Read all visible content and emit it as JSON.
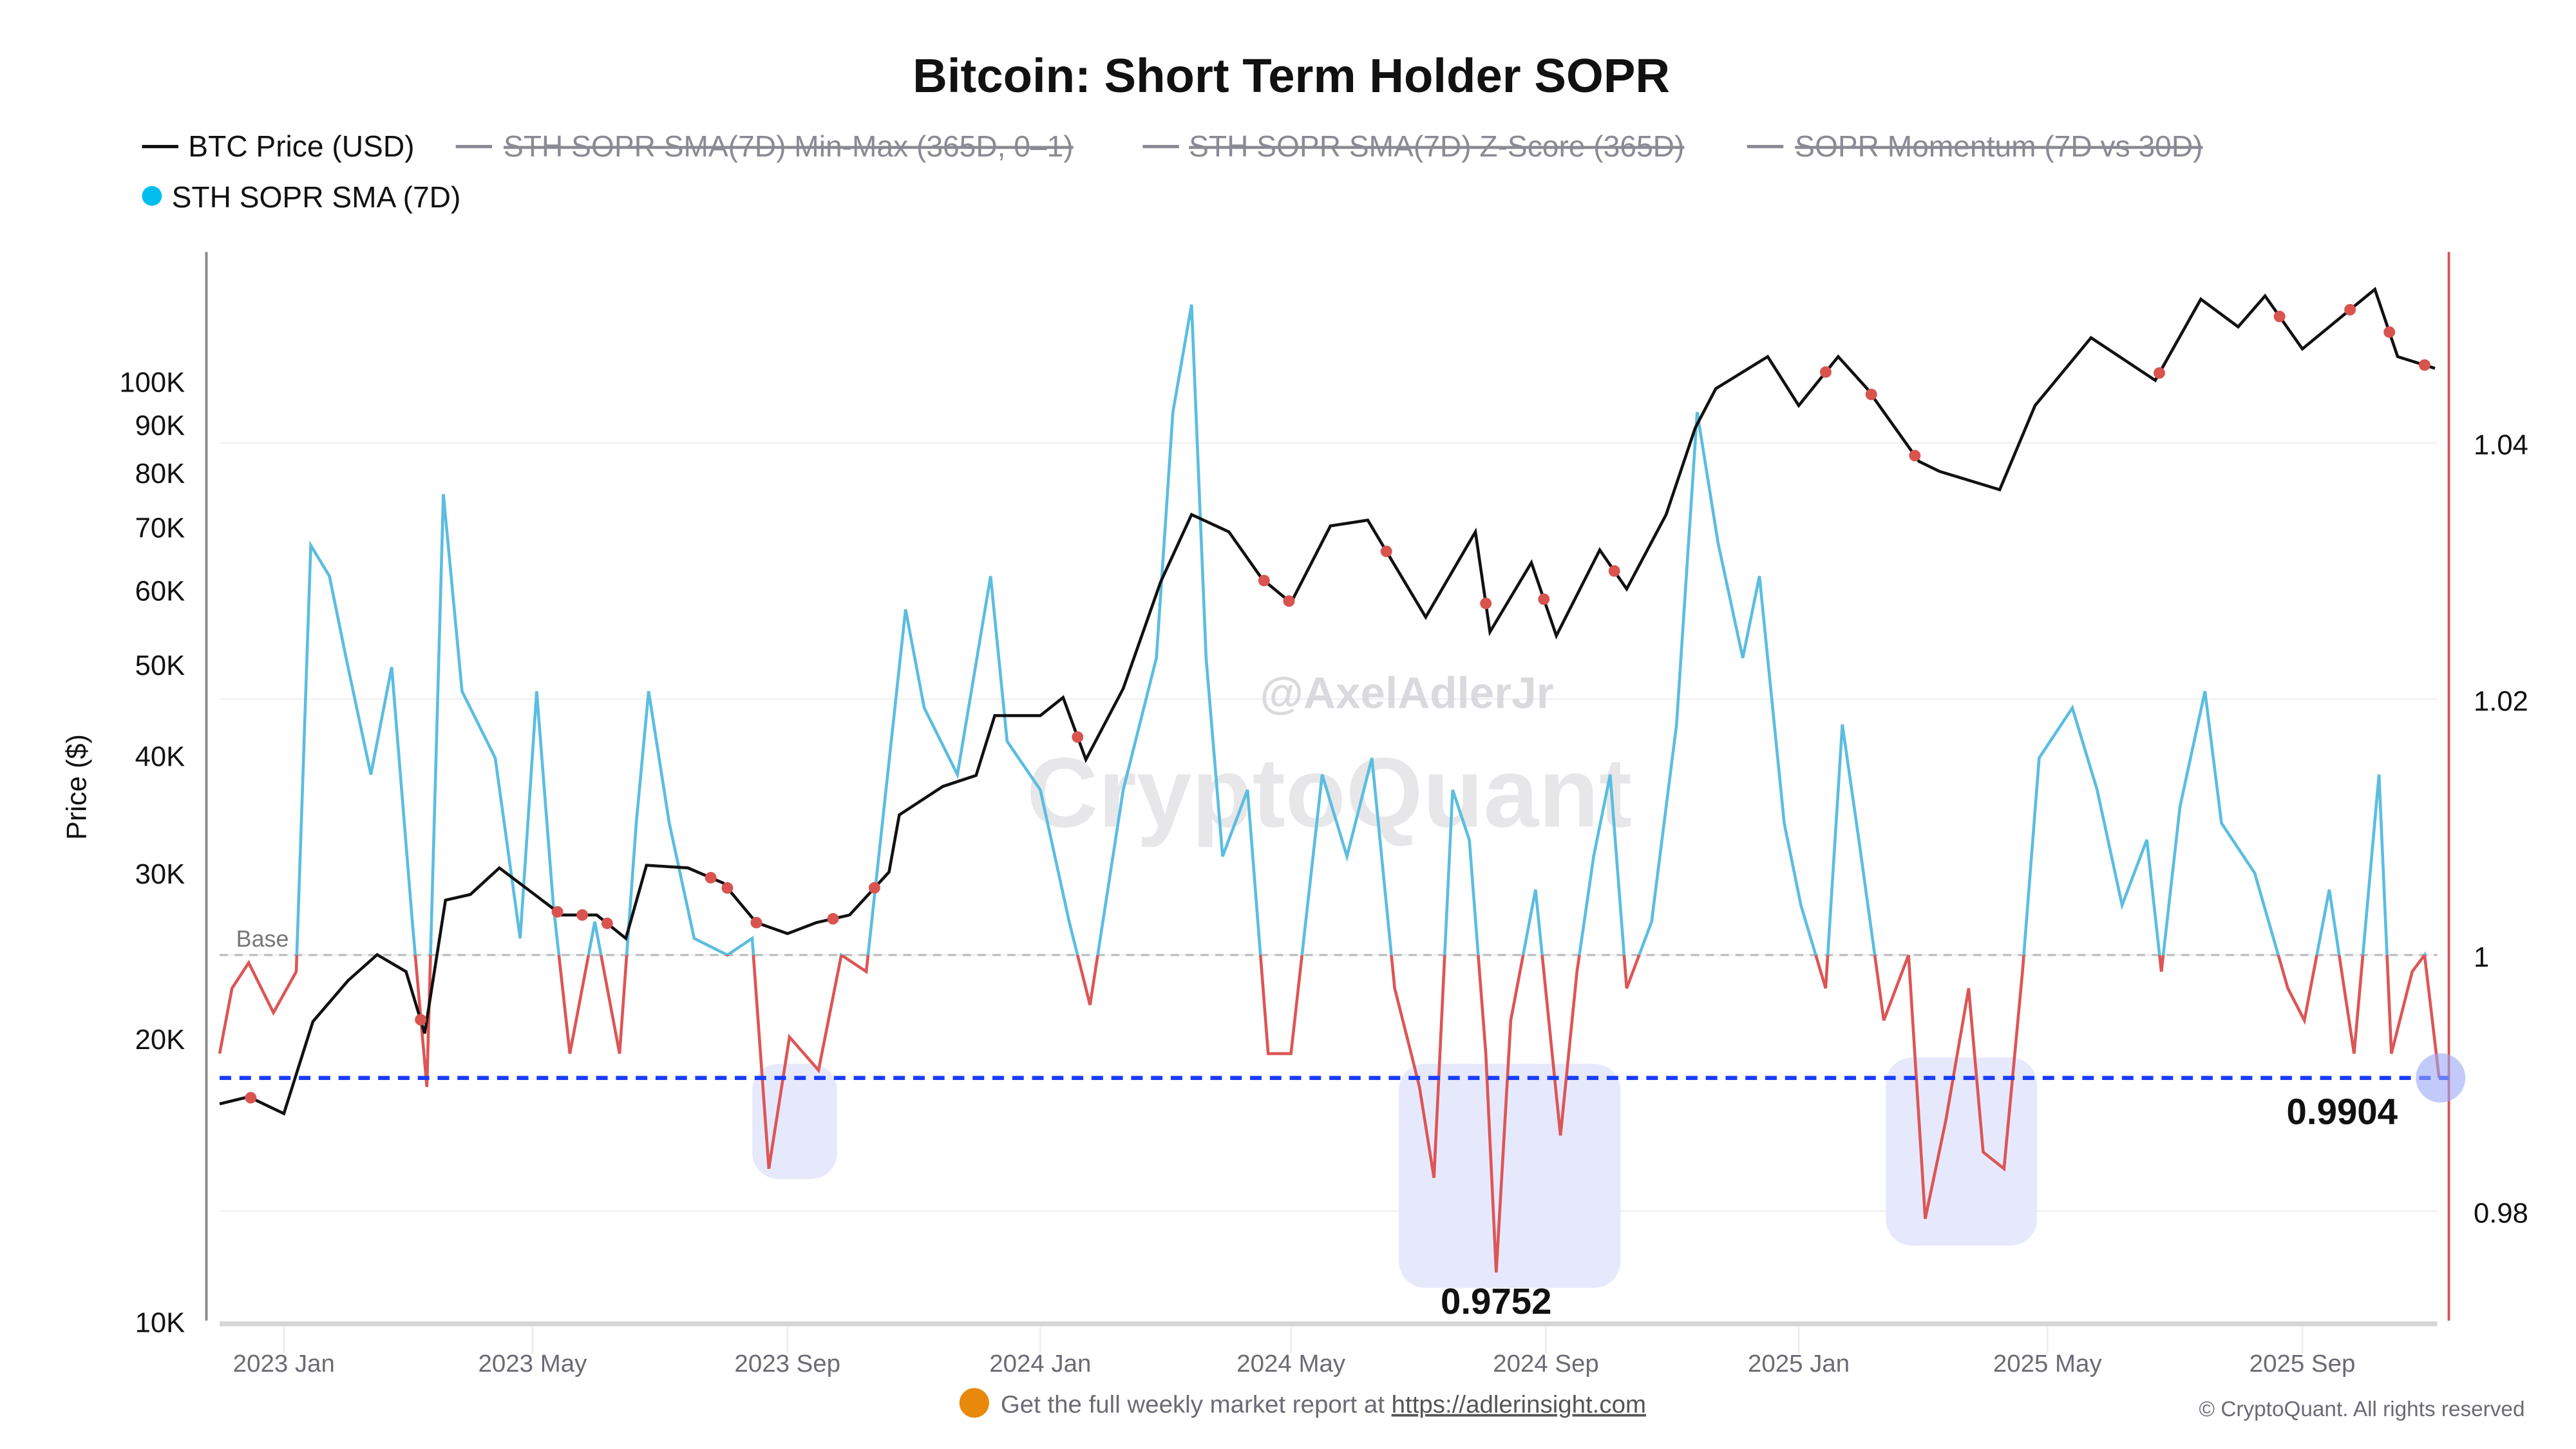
{
  "chart_data": {
    "type": "line",
    "title": "Bitcoin: Short Term Holder SOPR",
    "legend": [
      {
        "label": "BTC Price (USD)",
        "color": "#111111",
        "visible": true,
        "marker": "line"
      },
      {
        "label": "STH SOPR SMA(7D) Min-Max (365D, 0–1)",
        "color": "#8a8a94",
        "visible": false,
        "marker": "line"
      },
      {
        "label": "STH SOPR SMA(7D) Z-Score (365D)",
        "color": "#8a8a94",
        "visible": false,
        "marker": "line"
      },
      {
        "label": "SOPR Momentum (7D vs 30D)",
        "color": "#8a8a94",
        "visible": false,
        "marker": "line"
      },
      {
        "label": "STH SOPR SMA (7D)",
        "color": "#00bfef",
        "visible": true,
        "marker": "dot"
      }
    ],
    "legend_placement": "top-left",
    "ylabel_left": "Price ($)",
    "y_left_scale": "log",
    "y_left_range": [
      10000,
      150000
    ],
    "y_left_ticks": [
      "10K",
      "20K",
      "30K",
      "40K",
      "50K",
      "60K",
      "70K",
      "80K",
      "90K",
      "100K"
    ],
    "y_left_tick_values": [
      10000,
      20000,
      30000,
      40000,
      50000,
      60000,
      70000,
      80000,
      90000,
      100000
    ],
    "y_right_range": [
      0.9705,
      1.056
    ],
    "y_right_ticks": [
      "0.98",
      "1",
      "1.02",
      "1.04"
    ],
    "y_right_tick_values": [
      0.98,
      1,
      1.02,
      1.04
    ],
    "x_ticks": [
      "2023 Jan",
      "2023 May",
      "2023 Sep",
      "2024 Jan",
      "2024 May",
      "2024 Sep",
      "2025 Jan",
      "2025 May",
      "2025 Sep"
    ],
    "x_tick_dates": [
      "2023-01-01",
      "2023-05-01",
      "2023-09-01",
      "2024-01-01",
      "2024-05-01",
      "2024-09-01",
      "2025-01-01",
      "2025-05-01",
      "2025-09-01"
    ],
    "x_range": [
      "2022-12-01",
      "2025-11-06"
    ],
    "grid": true,
    "colors": {
      "price": "#111111",
      "sopr_above": "#5bbde0",
      "sopr_below": "#dd5555",
      "threshold": "#1a3cff",
      "base": "#bbbbbb",
      "marker": "#d9534f",
      "highlight": "#e6e9fc"
    },
    "base_line": {
      "label": "Base",
      "value": 1
    },
    "threshold_line": {
      "value": 0.9904
    },
    "annotations": [
      {
        "label": "0.9904",
        "date": "2025-11-06",
        "value": 0.9904
      },
      {
        "label": "0.9752",
        "date": "2024-08-08",
        "value": 0.9752
      }
    ],
    "highlight_zones": [
      {
        "from": "2023-08-15",
        "to": "2023-09-25",
        "low": 0.9825,
        "high": 0.9915
      },
      {
        "from": "2024-06-22",
        "to": "2024-10-07",
        "low": 0.974,
        "high": 0.9915
      },
      {
        "from": "2025-02-12",
        "to": "2025-04-26",
        "low": 0.9773,
        "high": 0.992
      }
    ],
    "series": [
      {
        "name": "BTC Price (USD)",
        "axis": "left",
        "points": [
          [
            "2022-12-01",
            17000
          ],
          [
            "2022-12-15",
            17300
          ],
          [
            "2023-01-01",
            16600
          ],
          [
            "2023-01-15",
            20800
          ],
          [
            "2023-02-01",
            23000
          ],
          [
            "2023-02-15",
            24500
          ],
          [
            "2023-03-01",
            23500
          ],
          [
            "2023-03-10",
            20200
          ],
          [
            "2023-03-20",
            28000
          ],
          [
            "2023-04-01",
            28400
          ],
          [
            "2023-04-15",
            30300
          ],
          [
            "2023-05-01",
            28500
          ],
          [
            "2023-05-15",
            27000
          ],
          [
            "2023-06-01",
            27000
          ],
          [
            "2023-06-15",
            25500
          ],
          [
            "2023-06-25",
            30500
          ],
          [
            "2023-07-15",
            30300
          ],
          [
            "2023-08-01",
            29200
          ],
          [
            "2023-08-17",
            26500
          ],
          [
            "2023-09-01",
            25800
          ],
          [
            "2023-09-15",
            26500
          ],
          [
            "2023-10-01",
            27000
          ],
          [
            "2023-10-20",
            30000
          ],
          [
            "2023-10-25",
            34500
          ],
          [
            "2023-11-15",
            37000
          ],
          [
            "2023-12-01",
            38000
          ],
          [
            "2023-12-10",
            44000
          ],
          [
            "2024-01-01",
            44000
          ],
          [
            "2024-01-12",
            46000
          ],
          [
            "2024-01-23",
            39500
          ],
          [
            "2024-02-10",
            47000
          ],
          [
            "2024-02-28",
            61000
          ],
          [
            "2024-03-14",
            72000
          ],
          [
            "2024-04-01",
            69000
          ],
          [
            "2024-04-17",
            61500
          ],
          [
            "2024-05-01",
            58000
          ],
          [
            "2024-05-20",
            70000
          ],
          [
            "2024-06-07",
            71000
          ],
          [
            "2024-07-05",
            56000
          ],
          [
            "2024-07-29",
            69000
          ],
          [
            "2024-08-05",
            54000
          ],
          [
            "2024-08-25",
            64000
          ],
          [
            "2024-09-06",
            53500
          ],
          [
            "2024-09-27",
            66000
          ],
          [
            "2024-10-10",
            60000
          ],
          [
            "2024-10-29",
            72000
          ],
          [
            "2024-11-12",
            89000
          ],
          [
            "2024-11-22",
            98000
          ],
          [
            "2024-12-17",
            106000
          ],
          [
            "2025-01-01",
            94000
          ],
          [
            "2025-01-20",
            106000
          ],
          [
            "2025-02-03",
            98000
          ],
          [
            "2025-02-28",
            82000
          ],
          [
            "2025-03-10",
            80000
          ],
          [
            "2025-04-08",
            76500
          ],
          [
            "2025-04-25",
            94000
          ],
          [
            "2025-05-22",
            111000
          ],
          [
            "2025-06-22",
            100000
          ],
          [
            "2025-07-14",
            122000
          ],
          [
            "2025-08-01",
            114000
          ],
          [
            "2025-08-14",
            123000
          ],
          [
            "2025-09-01",
            108000
          ],
          [
            "2025-10-06",
            125000
          ],
          [
            "2025-10-17",
            106000
          ],
          [
            "2025-11-04",
            103000
          ]
        ]
      },
      {
        "name": "STH SOPR SMA (7D)",
        "axis": "right",
        "points": [
          [
            "2022-12-01",
            0.9923
          ],
          [
            "2022-12-07",
            0.9974
          ],
          [
            "2022-12-15",
            0.9994
          ],
          [
            "2022-12-27",
            0.9955
          ],
          [
            "2023-01-07",
            0.9987
          ],
          [
            "2023-01-14",
            1.032
          ],
          [
            "2023-01-23",
            1.0296
          ],
          [
            "2023-01-31",
            1.0232
          ],
          [
            "2023-02-12",
            1.0141
          ],
          [
            "2023-02-22",
            1.0225
          ],
          [
            "2023-03-04",
            1.0026
          ],
          [
            "2023-03-11",
            0.9897
          ],
          [
            "2023-03-19",
            1.036
          ],
          [
            "2023-03-28",
            1.0206
          ],
          [
            "2023-04-13",
            1.0154
          ],
          [
            "2023-04-25",
            1.0013
          ],
          [
            "2023-05-03",
            1.0206
          ],
          [
            "2023-05-11",
            1.0039
          ],
          [
            "2023-05-19",
            0.9923
          ],
          [
            "2023-05-31",
            1.0026
          ],
          [
            "2023-06-12",
            0.9923
          ],
          [
            "2023-06-20",
            1.0103
          ],
          [
            "2023-06-26",
            1.0206
          ],
          [
            "2023-07-06",
            1.0103
          ],
          [
            "2023-07-18",
            1.0013
          ],
          [
            "2023-08-03",
            1.0
          ],
          [
            "2023-08-15",
            1.0013
          ],
          [
            "2023-08-23",
            0.9833
          ],
          [
            "2023-09-02",
            0.9936
          ],
          [
            "2023-09-16",
            0.991
          ],
          [
            "2023-09-27",
            1.0
          ],
          [
            "2023-10-09",
            0.9987
          ],
          [
            "2023-10-28",
            1.027
          ],
          [
            "2023-11-06",
            1.0193
          ],
          [
            "2023-11-22",
            1.0141
          ],
          [
            "2023-12-08",
            1.0296
          ],
          [
            "2023-12-16",
            1.0167
          ],
          [
            "2024-01-01",
            1.0129
          ],
          [
            "2024-01-15",
            1.0026
          ],
          [
            "2024-01-25",
            0.9961
          ],
          [
            "2024-02-10",
            1.0129
          ],
          [
            "2024-02-26",
            1.0232
          ],
          [
            "2024-03-05",
            1.0424
          ],
          [
            "2024-03-14",
            1.0508
          ],
          [
            "2024-03-21",
            1.0232
          ],
          [
            "2024-03-29",
            1.0077
          ],
          [
            "2024-04-10",
            1.0129
          ],
          [
            "2024-04-20",
            0.9923
          ],
          [
            "2024-05-01",
            0.9923
          ],
          [
            "2024-05-16",
            1.0141
          ],
          [
            "2024-05-28",
            1.0077
          ],
          [
            "2024-06-09",
            1.0154
          ],
          [
            "2024-06-20",
            0.9974
          ],
          [
            "2024-06-28",
            0.9923
          ],
          [
            "2024-07-02",
            0.9897
          ],
          [
            "2024-07-09",
            0.9826
          ],
          [
            "2024-07-18",
            1.0129
          ],
          [
            "2024-07-26",
            1.009
          ],
          [
            "2024-08-03",
            0.9923
          ],
          [
            "2024-08-08",
            0.9752
          ],
          [
            "2024-08-15",
            0.9949
          ],
          [
            "2024-08-27",
            1.0051
          ],
          [
            "2024-09-08",
            0.9859
          ],
          [
            "2024-09-16",
            0.9987
          ],
          [
            "2024-09-24",
            1.0077
          ],
          [
            "2024-10-02",
            1.0141
          ],
          [
            "2024-10-10",
            0.9974
          ],
          [
            "2024-10-22",
            1.0026
          ],
          [
            "2024-11-03",
            1.018
          ],
          [
            "2024-11-13",
            1.0424
          ],
          [
            "2024-11-23",
            1.0322
          ],
          [
            "2024-12-05",
            1.0232
          ],
          [
            "2024-12-13",
            1.0296
          ],
          [
            "2024-12-25",
            1.0103
          ],
          [
            "2025-01-02",
            1.0039
          ],
          [
            "2025-01-14",
            0.9974
          ],
          [
            "2025-01-22",
            1.018
          ],
          [
            "2025-01-30",
            1.009
          ],
          [
            "2025-02-11",
            0.9949
          ],
          [
            "2025-02-23",
            1.0
          ],
          [
            "2025-03-03",
            0.9794
          ],
          [
            "2025-03-13",
            0.9871
          ],
          [
            "2025-03-24",
            0.9974
          ],
          [
            "2025-03-31",
            0.9846
          ],
          [
            "2025-04-10",
            0.9833
          ],
          [
            "2025-04-19",
            0.9987
          ],
          [
            "2025-04-27",
            1.0154
          ],
          [
            "2025-05-13",
            1.0193
          ],
          [
            "2025-05-25",
            1.0129
          ],
          [
            "2025-06-06",
            1.0039
          ],
          [
            "2025-06-18",
            1.009
          ],
          [
            "2025-06-25",
            0.9987
          ],
          [
            "2025-07-04",
            1.0116
          ],
          [
            "2025-07-16",
            1.0206
          ],
          [
            "2025-07-24",
            1.0103
          ],
          [
            "2025-08-09",
            1.0064
          ],
          [
            "2025-08-25",
            0.9974
          ],
          [
            "2025-09-02",
            0.9949
          ],
          [
            "2025-09-14",
            1.0051
          ],
          [
            "2025-09-26",
            0.9923
          ],
          [
            "2025-10-08",
            1.0141
          ],
          [
            "2025-10-14",
            0.9923
          ],
          [
            "2025-10-24",
            0.9987
          ],
          [
            "2025-10-30",
            1.0
          ],
          [
            "2025-11-06",
            0.9904
          ]
        ]
      }
    ],
    "signal_markers": [
      "2022-12-16",
      "2023-03-08",
      "2023-05-13",
      "2023-05-25",
      "2023-06-06",
      "2023-07-26",
      "2023-08-03",
      "2023-08-17",
      "2023-09-23",
      "2023-10-13",
      "2024-01-19",
      "2024-04-18",
      "2024-04-30",
      "2024-06-16",
      "2024-08-03",
      "2024-08-31",
      "2024-10-04",
      "2025-01-14",
      "2025-02-05",
      "2025-02-26",
      "2025-06-24",
      "2025-08-21",
      "2025-09-24",
      "2025-10-13",
      "2025-10-30"
    ]
  },
  "watermark": {
    "handle": "@AxelAdlerJr",
    "brand": "CryptoQuant"
  },
  "footer": {
    "report_text": "Get the full weekly market report at ",
    "report_link": "https://adlerinsight.com",
    "copyright": "© CryptoQuant. All rights reserved"
  }
}
